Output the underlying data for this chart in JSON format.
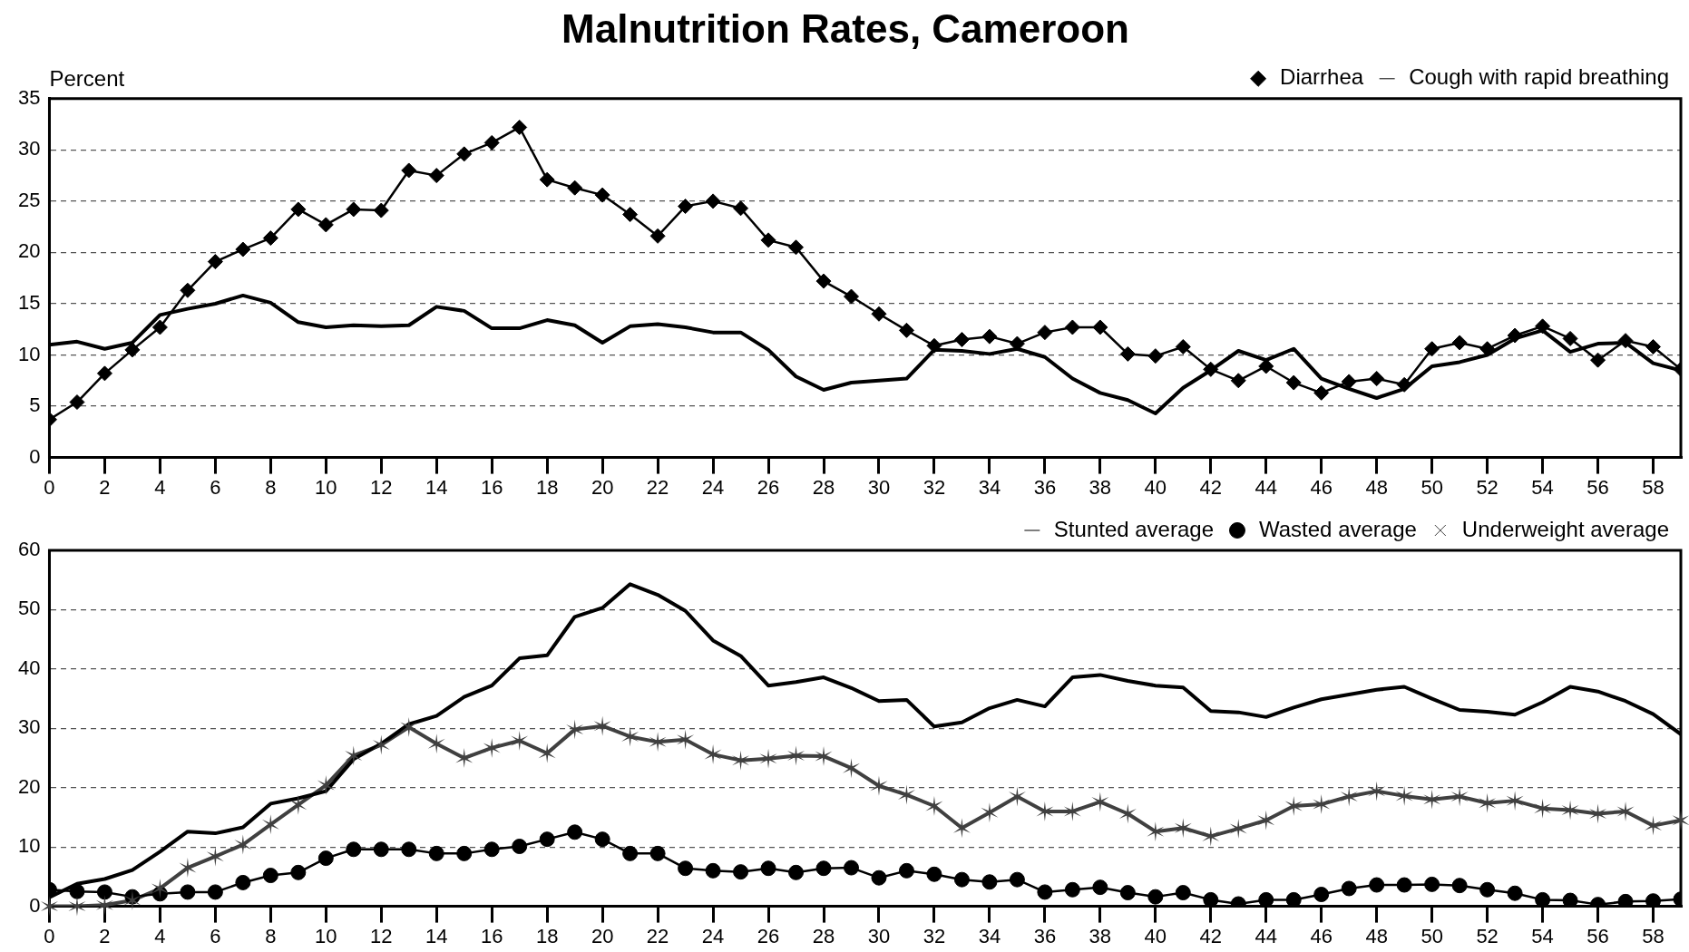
{
  "chart_data": [
    {
      "type": "line",
      "title": "Malnutrition Rates, Cameroon",
      "ylabel": "Percent",
      "x": [
        0,
        1,
        2,
        3,
        4,
        5,
        6,
        7,
        8,
        9,
        10,
        11,
        12,
        13,
        14,
        15,
        16,
        17,
        18,
        19,
        20,
        21,
        22,
        23,
        24,
        25,
        26,
        27,
        28,
        29,
        30,
        31,
        32,
        33,
        34,
        35,
        36,
        37,
        38,
        39,
        40,
        41,
        42,
        43,
        44,
        45,
        46,
        47,
        48,
        49,
        50,
        51,
        52,
        53,
        54,
        55,
        56,
        57,
        58,
        59
      ],
      "series": [
        {
          "name": "Diarrhea",
          "color": "#000000",
          "marker": "diamond",
          "values": [
            3.7,
            5.4,
            8.2,
            10.5,
            12.7,
            16.3,
            19.1,
            20.3,
            21.4,
            24.2,
            22.7,
            24.2,
            24.1,
            28,
            27.5,
            29.6,
            30.7,
            32.2,
            27.1,
            26.3,
            25.6,
            23.7,
            21.6,
            24.5,
            25,
            24.3,
            21.2,
            20.5,
            17.2,
            15.7,
            14,
            12.4,
            10.9,
            11.5,
            11.8,
            11.1,
            12.2,
            12.7,
            12.7,
            10.1,
            9.9,
            10.8,
            8.6,
            7.5,
            8.9,
            7.3,
            6.3,
            7.4,
            7.7,
            7.1,
            10.6,
            11.2,
            10.6,
            11.9,
            12.8,
            11.6,
            9.5,
            11.4,
            10.8,
            8.6
          ]
        },
        {
          "name": "Cough with rapid breathing",
          "color": "#000000",
          "marker": "none",
          "values": [
            11,
            11.3,
            10.6,
            11.2,
            13.9,
            14.5,
            15,
            15.8,
            15.1,
            13.2,
            12.7,
            12.9,
            12.8,
            12.9,
            14.7,
            14.3,
            12.6,
            12.6,
            13.4,
            12.9,
            11.2,
            12.8,
            13,
            12.7,
            12.2,
            12.2,
            10.5,
            7.9,
            6.6,
            7.3,
            7.5,
            7.7,
            10.5,
            10.4,
            10.1,
            10.6,
            9.8,
            7.7,
            6.3,
            5.6,
            4.3,
            6.8,
            8.5,
            10.4,
            9.5,
            10.6,
            7.7,
            6.7,
            5.8,
            6.7,
            8.9,
            9.3,
            10,
            11.6,
            12.4,
            10.3,
            11.1,
            11.2,
            9.2,
            8.5
          ]
        }
      ],
      "xlim": [
        0,
        59
      ],
      "xticks": [
        0,
        2,
        4,
        6,
        8,
        10,
        12,
        14,
        16,
        18,
        20,
        22,
        24,
        26,
        28,
        30,
        32,
        34,
        36,
        38,
        40,
        42,
        44,
        46,
        48,
        50,
        52,
        54,
        56,
        58
      ],
      "ylim": [
        0,
        35
      ],
      "yticks": [
        0,
        5,
        10,
        15,
        20,
        25,
        30,
        35
      ],
      "grid": "y",
      "legend": "top right"
    },
    {
      "type": "line",
      "x": [
        0,
        1,
        2,
        3,
        4,
        5,
        6,
        7,
        8,
        9,
        10,
        11,
        12,
        13,
        14,
        15,
        16,
        17,
        18,
        19,
        20,
        21,
        22,
        23,
        24,
        25,
        26,
        27,
        28,
        29,
        30,
        31,
        32,
        33,
        34,
        35,
        36,
        37,
        38,
        39,
        40,
        41,
        42,
        43,
        44,
        45,
        46,
        47,
        48,
        49,
        50,
        51,
        52,
        53,
        54,
        55,
        56,
        57,
        58,
        59
      ],
      "series": [
        {
          "name": "Stunted average",
          "color": "#000000",
          "marker": "none",
          "values": [
            1.5,
            3.8,
            4.6,
            6.1,
            9.2,
            12.6,
            12.3,
            13.3,
            17.3,
            18.2,
            19.4,
            24.8,
            27.4,
            30.7,
            32.1,
            35.3,
            37.2,
            41.8,
            42.3,
            48.8,
            50.3,
            54.3,
            52.5,
            49.8,
            44.8,
            42.2,
            37.2,
            37.8,
            38.6,
            36.8,
            34.6,
            34.8,
            30.3,
            31,
            33.4,
            34.8,
            33.7,
            38.6,
            39,
            38,
            37.2,
            36.9,
            32.9,
            32.7,
            31.9,
            33.5,
            34.9,
            35.7,
            36.5,
            37,
            35,
            33.1,
            32.8,
            32.3,
            34.4,
            37,
            36.2,
            34.6,
            32.4,
            29
          ]
        },
        {
          "name": "Wasted average",
          "color": "#000000",
          "marker": "circle",
          "values": [
            2.8,
            2.5,
            2.4,
            1.6,
            2.1,
            2.4,
            2.4,
            4,
            5.2,
            5.7,
            8.1,
            9.6,
            9.6,
            9.6,
            8.9,
            8.9,
            9.6,
            10.1,
            11.3,
            12.5,
            11.3,
            8.9,
            8.9,
            6.4,
            6,
            5.8,
            6.4,
            5.7,
            6.4,
            6.5,
            4.8,
            6,
            5.4,
            4.5,
            4.1,
            4.5,
            2.4,
            2.8,
            3.2,
            2.3,
            1.6,
            2.3,
            1.1,
            0.4,
            1.1,
            1.1,
            2,
            3,
            3.6,
            3.6,
            3.7,
            3.5,
            2.8,
            2.2,
            1.1,
            1,
            0.3,
            0.8,
            0.9,
            1.2
          ]
        },
        {
          "name": "Underweight average",
          "color": "#404040",
          "marker": "cross",
          "values": [
            0,
            0,
            0.2,
            1,
            3,
            6.5,
            8.4,
            10.4,
            13.8,
            17.1,
            20.4,
            25.4,
            27.2,
            30.2,
            27.4,
            25,
            26.7,
            27.9,
            25.8,
            29.8,
            30.4,
            28.6,
            27.7,
            28.1,
            25.6,
            24.6,
            24.9,
            25.4,
            25.3,
            23.3,
            20.3,
            18.8,
            16.9,
            13.2,
            15.8,
            18.5,
            16,
            16,
            17.6,
            15.6,
            12.6,
            13.2,
            11.8,
            13.1,
            14.5,
            16.9,
            17.2,
            18.5,
            19.4,
            18.6,
            18,
            18.5,
            17.4,
            17.8,
            16.5,
            16.2,
            15.6,
            16,
            13.6,
            14.5
          ]
        }
      ],
      "xlim": [
        0,
        59
      ],
      "xticks": [
        0,
        2,
        4,
        6,
        8,
        10,
        12,
        14,
        16,
        18,
        20,
        22,
        24,
        26,
        28,
        30,
        32,
        34,
        36,
        38,
        40,
        42,
        44,
        46,
        48,
        50,
        52,
        54,
        56,
        58
      ],
      "ylim": [
        0,
        60
      ],
      "yticks": [
        0,
        10,
        20,
        30,
        40,
        50,
        60
      ],
      "grid": "y",
      "legend": "top right"
    }
  ]
}
